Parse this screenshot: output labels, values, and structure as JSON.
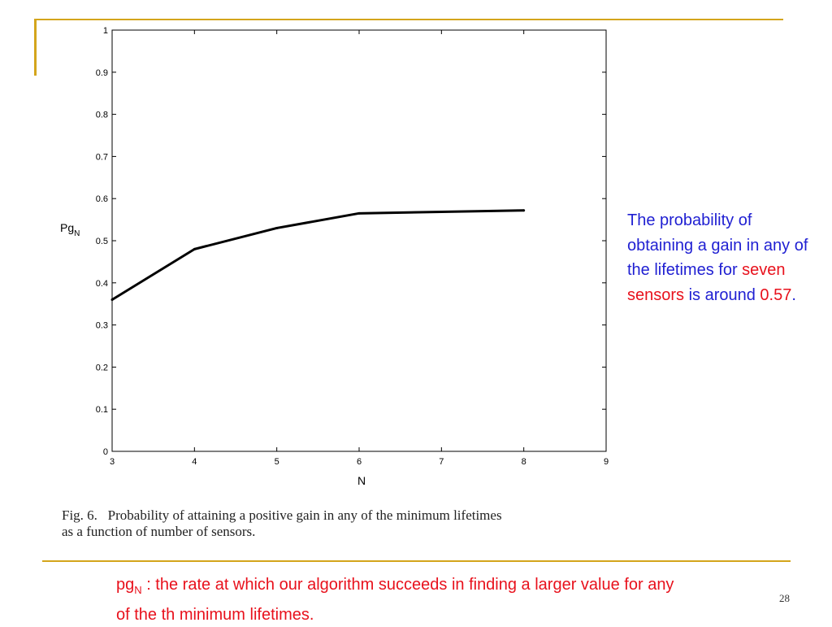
{
  "chart_data": {
    "type": "line",
    "x": [
      3,
      4,
      5,
      6,
      8
    ],
    "series": [
      {
        "values": [
          0.36,
          0.48,
          0.53,
          0.565,
          0.572
        ]
      }
    ],
    "xlabel": "N",
    "ylabel_main": "Pg",
    "ylabel_sub": "N",
    "xlim": [
      3,
      9
    ],
    "ylim": [
      0,
      1
    ],
    "xticks": [
      "3",
      "4",
      "5",
      "6",
      "7",
      "8",
      "9"
    ],
    "yticks": [
      "0",
      "0.1",
      "0.2",
      "0.3",
      "0.4",
      "0.5",
      "0.6",
      "0.7",
      "0.8",
      "0.9",
      "1"
    ],
    "grid": false,
    "line_color": "#000000"
  },
  "caption": {
    "line1": "Fig. 6.   Probability of attaining a positive gain in any of the minimum lifetimes",
    "line2": "as a function of number of sensors."
  },
  "side_note": {
    "text1": "The probability of obtaining a gain in any of the lifetimes for ",
    "highlight1": "seven sensors",
    "text2": " is around ",
    "highlight2": "0.57",
    "text3": "."
  },
  "footnote": {
    "main": "pg",
    "sub": "N",
    "text": " : the rate at which our algorithm succeeds in finding a larger value for any of the th minimum lifetimes."
  },
  "page_number": "28",
  "colors": {
    "accent_rule": "#d4a51c",
    "note_blue": "#1f1fd2",
    "highlight_red": "#e8111c"
  }
}
